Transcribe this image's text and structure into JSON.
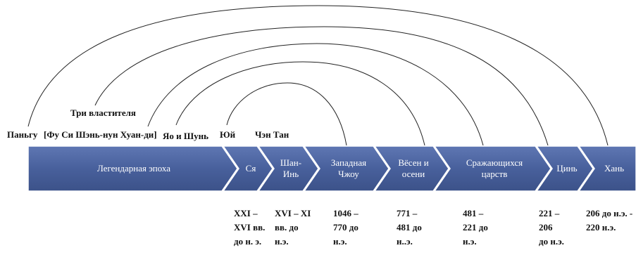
{
  "top_labels": {
    "three_sovereigns": "Три властителя",
    "pangu": "Паньгу",
    "fu_xi_group": "[Фу Си Шэнь-нун Хуан-ди]",
    "yao_shun": "Яо и Шунь",
    "yu": "Юй",
    "cheng_tang": "Чэн Тан"
  },
  "periods": [
    {
      "name": "Легендарная эпоха"
    },
    {
      "name": "Ся"
    },
    {
      "name": "Шан-\nИнь"
    },
    {
      "name": "Западная\nЧжоу"
    },
    {
      "name": "Вёсен и\nосени"
    },
    {
      "name": "Сражающихся\nцарств"
    },
    {
      "name": "Цинь"
    },
    {
      "name": "Хань"
    }
  ],
  "dates": [
    {
      "text": "XXI –\nXVI вв.\nдо н. э."
    },
    {
      "text": "XVI – XI\nвв. до\nн.э."
    },
    {
      "text": "1046 –\n770 до\nн.э."
    },
    {
      "text": "771 –\n481 до\nн..э."
    },
    {
      "text": "481 –\n221 до\nн.э."
    },
    {
      "text": "221 –\n206\nдо н.э."
    },
    {
      "text": "206 до н.э. -\n220 н.э."
    }
  ]
}
